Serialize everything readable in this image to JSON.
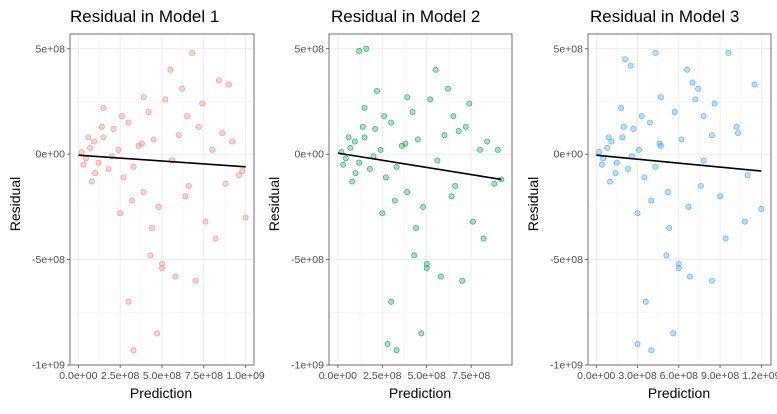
{
  "chart_data": [
    {
      "type": "scatter",
      "title": "Residual in Model 1",
      "xlabel": "Prediction",
      "ylabel": "Residual",
      "color": "#f8766d",
      "xlim": [
        -50000000.0,
        1050000000.0
      ],
      "ylim": [
        -1000000000.0,
        570000000.0
      ],
      "xticks": [
        0,
        250000000,
        500000000,
        750000000,
        1000000000
      ],
      "xtick_labels": [
        "0.0e+00",
        "2.5e+08",
        "5.0e+08",
        "7.5e+08",
        "1.0e+09"
      ],
      "yticks": [
        -1000000000,
        -500000000,
        0,
        500000000
      ],
      "ytick_labels": [
        "-1e+09",
        "-5e+08",
        "0e+00",
        "5e+08"
      ],
      "fit": {
        "x": [
          0,
          1000000000
        ],
        "y": [
          -5000000,
          -60000000
        ]
      },
      "points": {
        "x": [
          20000000,
          45000000,
          70000000,
          95000000,
          120000000,
          150000000,
          180000000,
          210000000,
          240000000,
          270000000,
          300000000,
          330000000,
          360000000,
          390000000,
          420000000,
          450000000,
          480000000,
          520000000,
          560000000,
          600000000,
          640000000,
          680000000,
          720000000,
          760000000,
          800000000,
          840000000,
          880000000,
          920000000,
          960000000,
          1000000000,
          30000000,
          60000000,
          100000000,
          140000000,
          200000000,
          260000000,
          320000000,
          380000000,
          440000000,
          500000000,
          580000000,
          660000000,
          740000000,
          820000000,
          900000000,
          980000000,
          620000000,
          470000000,
          330000000,
          250000000,
          150000000,
          80000000,
          550000000,
          700000000,
          860000000,
          430000000,
          390000000,
          300000000,
          500000000,
          650000000
        ],
        "y": [
          10000000,
          -20000000,
          30000000,
          60000000,
          -40000000,
          80000000,
          -70000000,
          120000000,
          20000000,
          -110000000,
          150000000,
          -60000000,
          40000000,
          -180000000,
          200000000,
          70000000,
          -250000000,
          260000000,
          -30000000,
          90000000,
          -200000000,
          480000000,
          130000000,
          -320000000,
          20000000,
          350000000,
          -140000000,
          60000000,
          -100000000,
          -300000000,
          -50000000,
          80000000,
          -90000000,
          130000000,
          -10000000,
          180000000,
          -220000000,
          50000000,
          -350000000,
          -520000000,
          -580000000,
          -150000000,
          240000000,
          -400000000,
          330000000,
          -80000000,
          310000000,
          -850000000,
          -930000000,
          -280000000,
          220000000,
          -130000000,
          400000000,
          -600000000,
          100000000,
          -480000000,
          270000000,
          -700000000,
          -540000000,
          180000000
        ]
      }
    },
    {
      "type": "scatter",
      "title": "Residual in Model 2",
      "xlabel": "Prediction",
      "ylabel": "Residual",
      "color": "#00993d",
      "xlim": [
        -50000000.0,
        980000000.0
      ],
      "ylim": [
        -1000000000.0,
        570000000.0
      ],
      "xticks": [
        0,
        250000000,
        500000000,
        750000000
      ],
      "xtick_labels": [
        "0.0e+00",
        "2.5e+08",
        "5.0e+08",
        "7.5e+08"
      ],
      "yticks": [
        -1000000000,
        -500000000,
        0,
        500000000
      ],
      "ytick_labels": [
        "-1e+09",
        "-5e+08",
        "0e+00",
        "5e+08"
      ],
      "fit": {
        "x": [
          0,
          920000000
        ],
        "y": [
          5000000,
          -120000000
        ]
      },
      "points": {
        "x": [
          20000000,
          45000000,
          70000000,
          95000000,
          120000000,
          150000000,
          180000000,
          210000000,
          240000000,
          270000000,
          300000000,
          330000000,
          360000000,
          390000000,
          420000000,
          450000000,
          480000000,
          520000000,
          560000000,
          600000000,
          640000000,
          680000000,
          720000000,
          760000000,
          800000000,
          840000000,
          880000000,
          920000000,
          30000000,
          60000000,
          100000000,
          140000000,
          200000000,
          260000000,
          320000000,
          380000000,
          440000000,
          500000000,
          580000000,
          660000000,
          740000000,
          820000000,
          620000000,
          470000000,
          330000000,
          250000000,
          150000000,
          80000000,
          550000000,
          700000000,
          430000000,
          390000000,
          300000000,
          500000000,
          650000000,
          120000000,
          160000000,
          220000000,
          280000000,
          900000000
        ],
        "y": [
          10000000,
          -20000000,
          30000000,
          60000000,
          -40000000,
          80000000,
          -70000000,
          120000000,
          20000000,
          -110000000,
          150000000,
          -60000000,
          40000000,
          -180000000,
          200000000,
          70000000,
          -250000000,
          260000000,
          -30000000,
          90000000,
          -200000000,
          110000000,
          130000000,
          -320000000,
          20000000,
          60000000,
          -140000000,
          -120000000,
          -50000000,
          80000000,
          -90000000,
          130000000,
          -10000000,
          180000000,
          -220000000,
          50000000,
          -350000000,
          -520000000,
          -580000000,
          -150000000,
          240000000,
          -400000000,
          310000000,
          -850000000,
          -930000000,
          -280000000,
          220000000,
          -130000000,
          400000000,
          -600000000,
          -480000000,
          270000000,
          -700000000,
          -540000000,
          180000000,
          490000000,
          500000000,
          300000000,
          -900000000,
          20000000
        ]
      }
    },
    {
      "type": "scatter",
      "title": "Residual in Model 3",
      "xlabel": "Prediction",
      "ylabel": "Residual",
      "color": "#3399ff",
      "xlim": [
        -60000000.0,
        1270000000.0
      ],
      "ylim": [
        -1000000000.0,
        570000000.0
      ],
      "xticks": [
        0,
        300000000,
        600000000,
        900000000,
        1200000000
      ],
      "xtick_labels": [
        "0.0e+00",
        "3.0e+08",
        "6.0e+08",
        "9.0e+08",
        "1.2e+09"
      ],
      "yticks": [
        -1000000000,
        -500000000,
        0,
        500000000
      ],
      "ytick_labels": [
        "-1e+09",
        "-5e+08",
        "0e+00",
        "5e+08"
      ],
      "fit": {
        "x": [
          0,
          1200000000
        ],
        "y": [
          -5000000,
          -80000000
        ]
      },
      "points": {
        "x": [
          20000000,
          50000000,
          80000000,
          110000000,
          150000000,
          190000000,
          230000000,
          270000000,
          310000000,
          350000000,
          390000000,
          430000000,
          470000000,
          520000000,
          570000000,
          620000000,
          670000000,
          720000000,
          780000000,
          840000000,
          900000000,
          960000000,
          1020000000,
          1080000000,
          1150000000,
          1200000000,
          40000000,
          90000000,
          140000000,
          200000000,
          260000000,
          330000000,
          400000000,
          460000000,
          530000000,
          600000000,
          680000000,
          760000000,
          860000000,
          940000000,
          740000000,
          560000000,
          400000000,
          300000000,
          180000000,
          100000000,
          660000000,
          840000000,
          1030000000,
          510000000,
          470000000,
          360000000,
          600000000,
          780000000,
          250000000,
          210000000,
          430000000,
          300000000,
          700000000,
          1100000000
        ],
        "y": [
          10000000,
          -20000000,
          30000000,
          60000000,
          -40000000,
          80000000,
          -70000000,
          120000000,
          20000000,
          -110000000,
          150000000,
          -60000000,
          40000000,
          -180000000,
          200000000,
          70000000,
          -250000000,
          260000000,
          -30000000,
          90000000,
          -200000000,
          480000000,
          130000000,
          -320000000,
          330000000,
          -260000000,
          -50000000,
          80000000,
          -90000000,
          130000000,
          -10000000,
          180000000,
          -220000000,
          50000000,
          -350000000,
          -520000000,
          -580000000,
          -150000000,
          240000000,
          -400000000,
          310000000,
          -850000000,
          -930000000,
          -280000000,
          220000000,
          -130000000,
          400000000,
          -600000000,
          100000000,
          -480000000,
          270000000,
          -700000000,
          -540000000,
          180000000,
          420000000,
          450000000,
          480000000,
          -900000000,
          340000000,
          -100000000
        ]
      }
    }
  ]
}
